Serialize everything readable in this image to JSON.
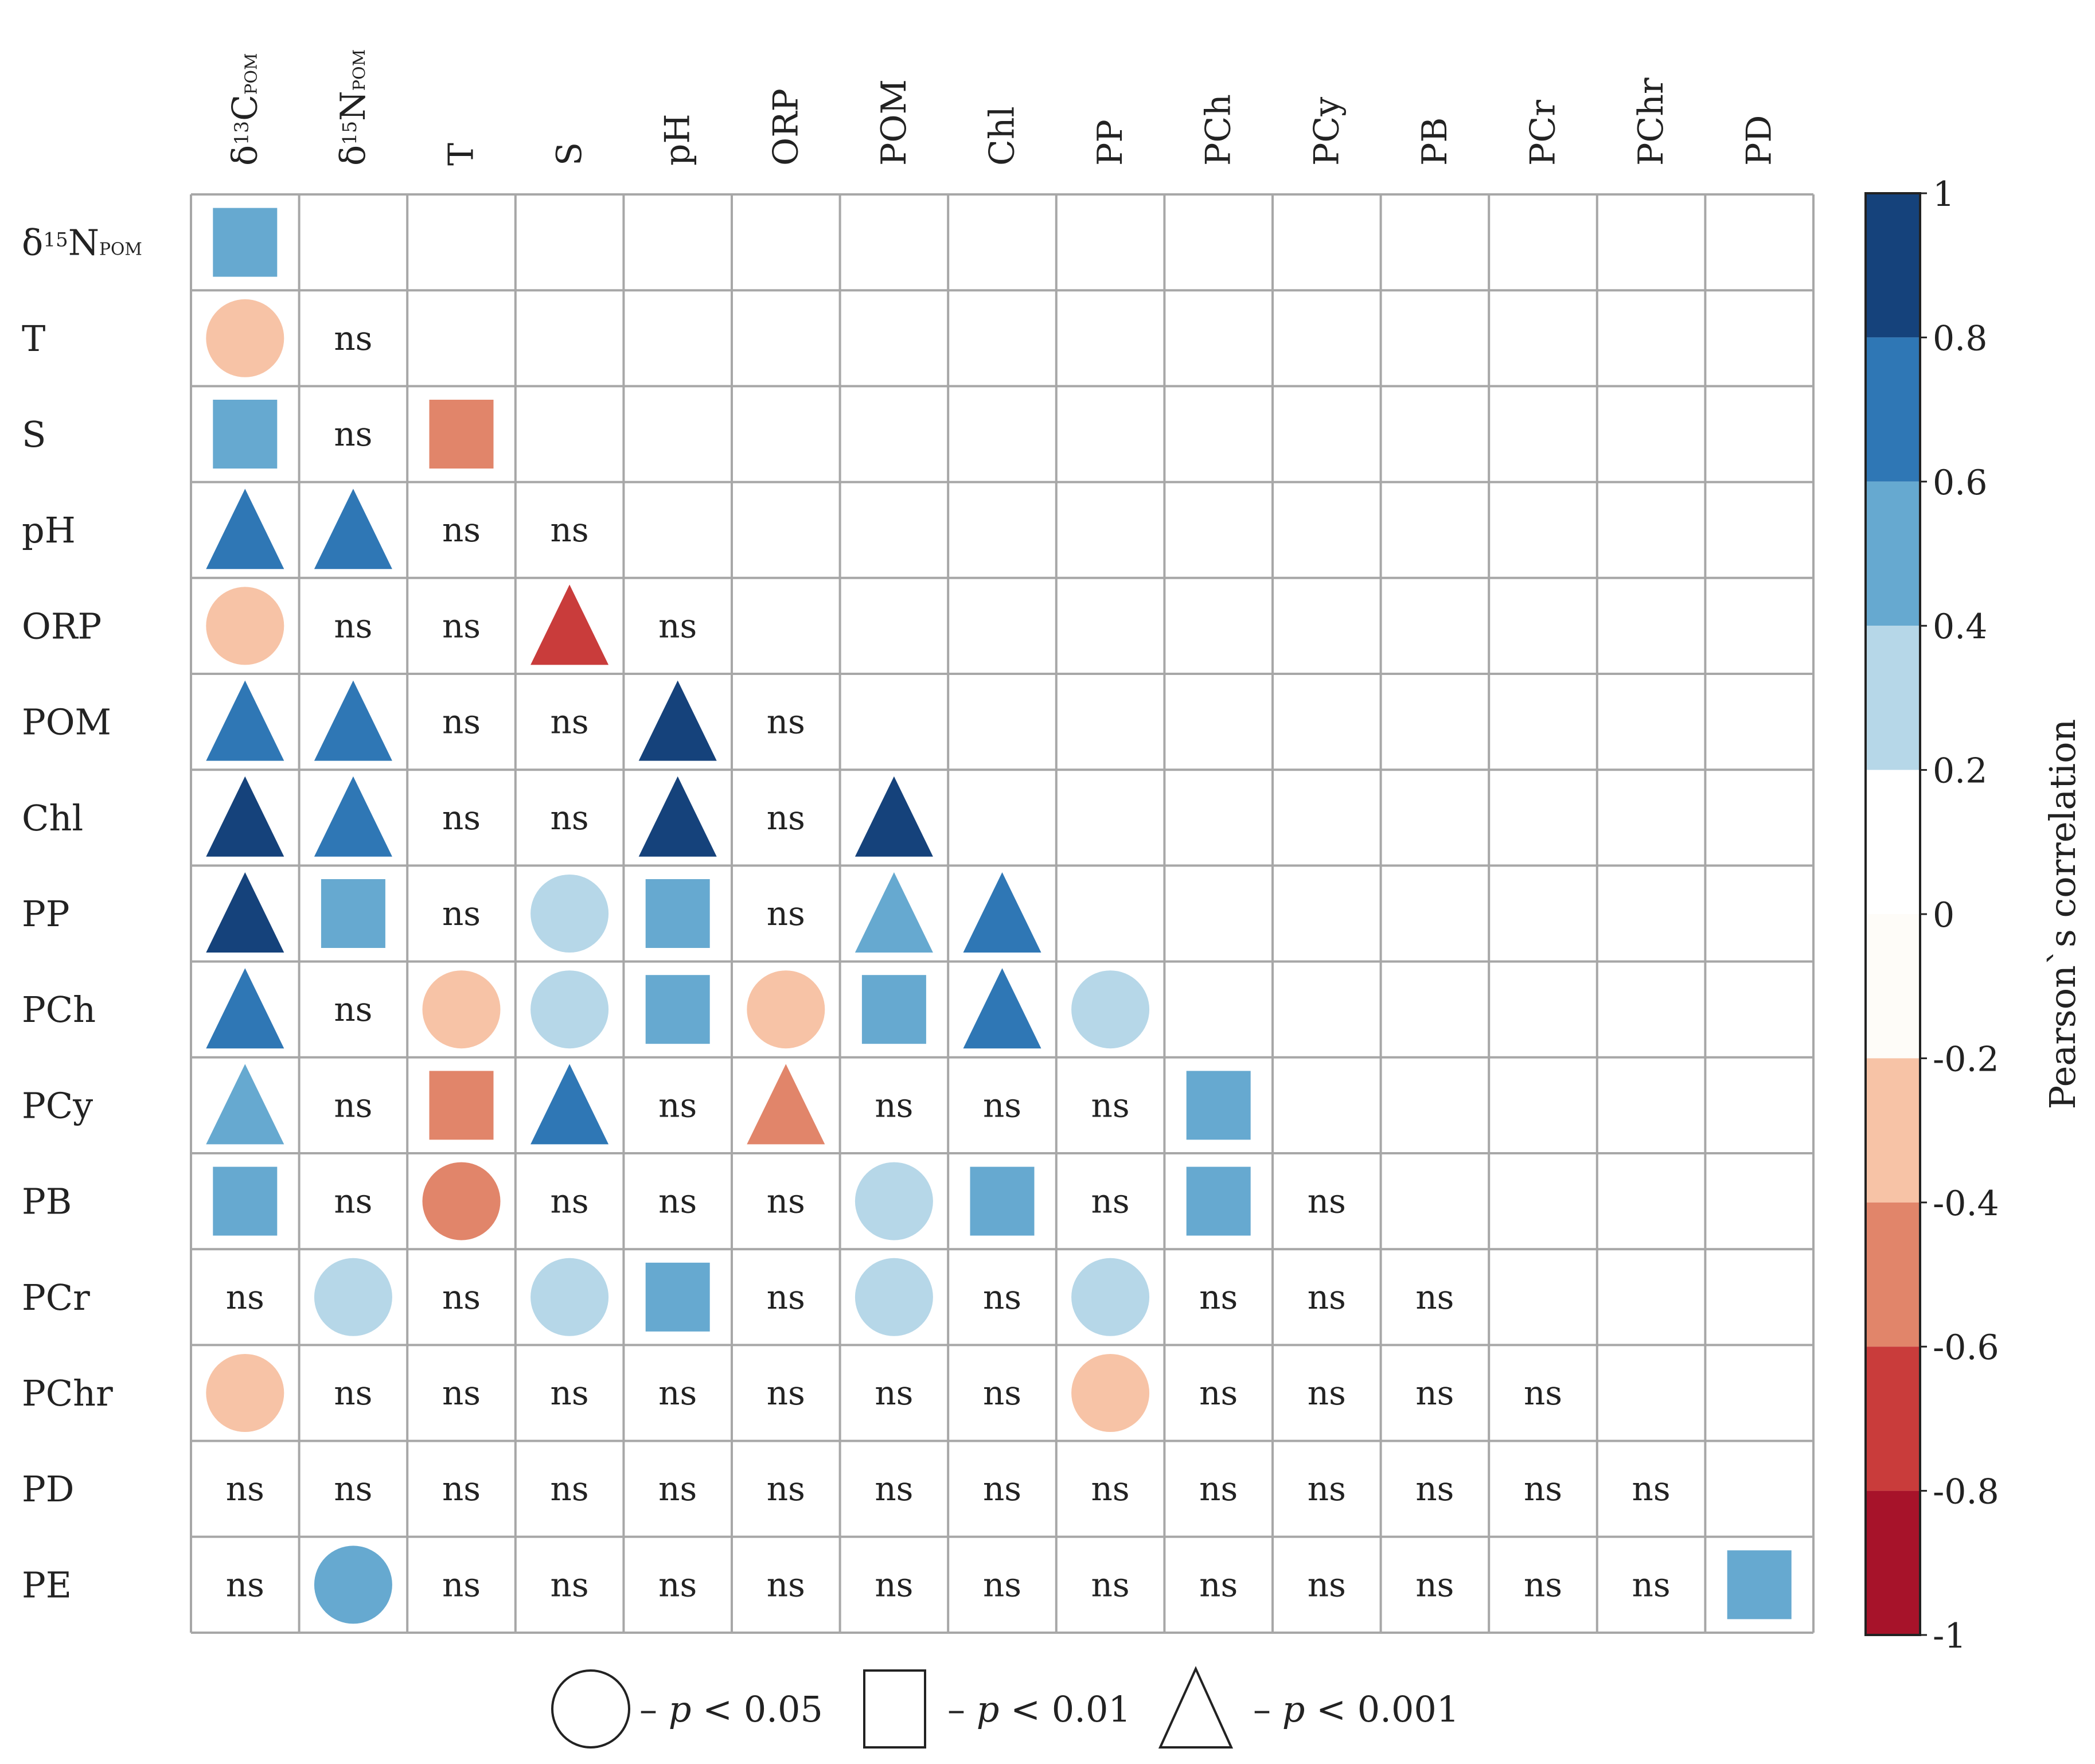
{
  "chart_data": {
    "type": "heatmap",
    "title": "",
    "columns": [
      {
        "main": "δ",
        "sup": "13",
        "sub_main": "C",
        "sub": "POM"
      },
      {
        "main": "δ",
        "sup": "15",
        "sub_main": "N",
        "sub": "POM"
      },
      {
        "main": "T"
      },
      {
        "main": "S"
      },
      {
        "main": "pH"
      },
      {
        "main": "ORP"
      },
      {
        "main": "POM"
      },
      {
        "main": "Chl"
      },
      {
        "main": "PP"
      },
      {
        "main": "PCh"
      },
      {
        "main": "PCy"
      },
      {
        "main": "PB"
      },
      {
        "main": "PCr"
      },
      {
        "main": "PChr"
      },
      {
        "main": "PD"
      }
    ],
    "rows": [
      {
        "main": "δ",
        "sup": "15",
        "sub_main": "N",
        "sub": "POM"
      },
      {
        "main": "T"
      },
      {
        "main": "S"
      },
      {
        "main": "pH"
      },
      {
        "main": "ORP"
      },
      {
        "main": "POM"
      },
      {
        "main": "Chl"
      },
      {
        "main": "PP"
      },
      {
        "main": "PCh"
      },
      {
        "main": "PCy"
      },
      {
        "main": "PB"
      },
      {
        "main": "PCr"
      },
      {
        "main": "PChr"
      },
      {
        "main": "PD"
      },
      {
        "main": "PE"
      }
    ],
    "ns_label": "ns",
    "cells": [
      [
        [
          "square",
          0.5
        ]
      ],
      [
        [
          "circle",
          -0.3
        ],
        "ns"
      ],
      [
        [
          "square",
          0.5
        ],
        "ns",
        [
          "square",
          -0.5
        ]
      ],
      [
        [
          "triangle",
          0.7
        ],
        [
          "triangle",
          0.7
        ],
        "ns",
        "ns"
      ],
      [
        [
          "circle",
          -0.3
        ],
        "ns",
        "ns",
        [
          "triangle",
          -0.7
        ],
        "ns"
      ],
      [
        [
          "triangle",
          0.7
        ],
        [
          "triangle",
          0.7
        ],
        "ns",
        "ns",
        [
          "triangle",
          0.9
        ],
        "ns"
      ],
      [
        [
          "triangle",
          0.9
        ],
        [
          "triangle",
          0.7
        ],
        "ns",
        "ns",
        [
          "triangle",
          0.9
        ],
        "ns",
        [
          "triangle",
          0.9
        ]
      ],
      [
        [
          "triangle",
          0.9
        ],
        [
          "square",
          0.5
        ],
        "ns",
        [
          "circle",
          0.3
        ],
        [
          "square",
          0.5
        ],
        "ns",
        [
          "triangle",
          0.5
        ],
        [
          "triangle",
          0.7
        ]
      ],
      [
        [
          "triangle",
          0.7
        ],
        "ns",
        [
          "circle",
          -0.3
        ],
        [
          "circle",
          0.3
        ],
        [
          "square",
          0.5
        ],
        [
          "circle",
          -0.3
        ],
        [
          "square",
          0.5
        ],
        [
          "triangle",
          0.7
        ],
        [
          "circle",
          0.3
        ]
      ],
      [
        [
          "triangle",
          0.5
        ],
        "ns",
        [
          "square",
          -0.5
        ],
        [
          "triangle",
          0.7
        ],
        "ns",
        [
          "triangle",
          -0.5
        ],
        "ns",
        "ns",
        "ns",
        [
          "square",
          0.5
        ]
      ],
      [
        [
          "square",
          0.5
        ],
        "ns",
        [
          "circle",
          -0.5
        ],
        "ns",
        "ns",
        "ns",
        [
          "circle",
          0.3
        ],
        [
          "square",
          0.5
        ],
        "ns",
        [
          "square",
          0.5
        ],
        "ns"
      ],
      [
        "ns",
        [
          "circle",
          0.3
        ],
        "ns",
        [
          "circle",
          0.3
        ],
        [
          "square",
          0.5
        ],
        "ns",
        [
          "circle",
          0.3
        ],
        "ns",
        [
          "circle",
          0.3
        ],
        "ns",
        "ns",
        "ns"
      ],
      [
        [
          "circle",
          -0.3
        ],
        "ns",
        "ns",
        "ns",
        "ns",
        "ns",
        "ns",
        "ns",
        [
          "circle",
          -0.3
        ],
        "ns",
        "ns",
        "ns",
        "ns"
      ],
      [
        "ns",
        "ns",
        "ns",
        "ns",
        "ns",
        "ns",
        "ns",
        "ns",
        "ns",
        "ns",
        "ns",
        "ns",
        "ns",
        "ns"
      ],
      [
        "ns",
        [
          "circle",
          0.5
        ],
        "ns",
        "ns",
        "ns",
        "ns",
        "ns",
        "ns",
        "ns",
        "ns",
        "ns",
        "ns",
        "ns",
        "ns",
        [
          "square",
          0.5
        ]
      ]
    ],
    "colorbar": {
      "label": "Pearson`s correlation",
      "range": [
        -1,
        1
      ],
      "ticks": [
        "1",
        "0.8",
        "0.6",
        "0.4",
        "0.2",
        "0",
        "-0.2",
        "-0.4",
        "-0.6",
        "-0.8",
        "-1"
      ],
      "bins": [
        {
          "from": 0.8,
          "to": 1.0,
          "color": "#15427b"
        },
        {
          "from": 0.6,
          "to": 0.8,
          "color": "#2f77b5"
        },
        {
          "from": 0.4,
          "to": 0.6,
          "color": "#66a9d0"
        },
        {
          "from": 0.2,
          "to": 0.4,
          "color": "#b6d7e8"
        },
        {
          "from": 0.0,
          "to": 0.2,
          "color": "#ffffff"
        },
        {
          "from": -0.2,
          "to": 0.0,
          "color": "#fefcf8"
        },
        {
          "from": -0.4,
          "to": -0.2,
          "color": "#f7c3a6"
        },
        {
          "from": -0.6,
          "to": -0.4,
          "color": "#e1856a"
        },
        {
          "from": -0.8,
          "to": -0.6,
          "color": "#c93c3b"
        },
        {
          "from": -1.0,
          "to": -0.8,
          "color": "#a7132a"
        }
      ]
    },
    "legend": [
      {
        "shape": "circle",
        "prefix": "– ",
        "p": "p",
        "text": " < 0.05"
      },
      {
        "shape": "square",
        "prefix": "– ",
        "p": "p",
        "text": " < 0.01"
      },
      {
        "shape": "triangle",
        "prefix": "– ",
        "p": "p",
        "text": " < 0.001"
      }
    ]
  }
}
